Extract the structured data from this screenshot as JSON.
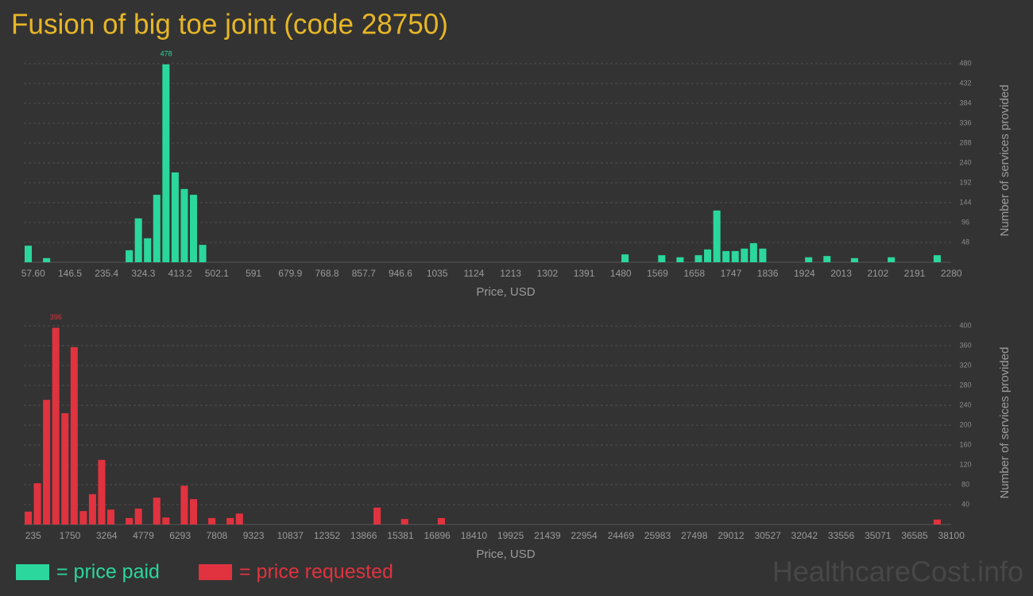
{
  "title": "Fusion of big toe joint (code 28750)",
  "watermark": "HealthcareCost.info",
  "chart_data": [
    {
      "type": "bar",
      "xlabel": "Price, USD",
      "ylabel": "Number of services provided",
      "label_max": true,
      "grid": true,
      "categories": [
        "57.60",
        null,
        null,
        null,
        "146.5",
        null,
        null,
        null,
        "235.4",
        null,
        null,
        null,
        "324.3",
        null,
        null,
        null,
        "413.2",
        null,
        null,
        null,
        "502.1",
        null,
        null,
        null,
        "591",
        null,
        null,
        null,
        "679.9",
        null,
        null,
        null,
        "768.8",
        null,
        null,
        null,
        "857.7",
        null,
        null,
        null,
        "946.6",
        null,
        null,
        null,
        "1035",
        null,
        null,
        null,
        "1124",
        null,
        null,
        null,
        "1213",
        null,
        null,
        null,
        "1302",
        null,
        null,
        null,
        "1391",
        null,
        null,
        null,
        "1480",
        null,
        null,
        null,
        "1569",
        null,
        null,
        null,
        "1658",
        null,
        null,
        null,
        "1747",
        null,
        null,
        null,
        "1836",
        null,
        null,
        null,
        "1924",
        null,
        null,
        null,
        "2013",
        null,
        null,
        null,
        "2102",
        null,
        null,
        null,
        "2191",
        null,
        null,
        null,
        "2280"
      ],
      "series": [
        {
          "name": "= price paid",
          "color": "#2bd79c",
          "values": [
            40,
            0,
            10,
            0,
            0,
            0,
            0,
            0,
            0,
            0,
            0,
            29,
            106,
            58,
            163,
            478,
            217,
            177,
            163,
            42,
            0,
            0,
            0,
            0,
            0,
            0,
            0,
            0,
            0,
            0,
            0,
            0,
            0,
            0,
            0,
            0,
            0,
            0,
            0,
            0,
            0,
            0,
            0,
            0,
            0,
            0,
            0,
            0,
            0,
            0,
            0,
            0,
            0,
            0,
            0,
            0,
            0,
            0,
            0,
            0,
            0,
            0,
            0,
            0,
            0,
            19,
            0,
            0,
            0,
            17,
            0,
            12,
            0,
            17,
            31,
            125,
            27,
            27,
            33,
            46,
            33,
            0,
            0,
            0,
            0,
            12,
            0,
            15,
            0,
            0,
            10,
            0,
            0,
            0,
            12,
            0,
            0,
            0,
            0,
            17,
            0
          ]
        }
      ],
      "ylim": [
        0,
        480
      ],
      "yticks": [
        48,
        96,
        144,
        192,
        240,
        288,
        336,
        384,
        432,
        480
      ]
    },
    {
      "type": "bar",
      "xlabel": "Price, USD",
      "ylabel": "Number of services provided",
      "label_max": true,
      "grid": true,
      "categories": [
        "235",
        null,
        null,
        null,
        "1750",
        null,
        null,
        null,
        "3264",
        null,
        null,
        null,
        "4779",
        null,
        null,
        null,
        "6293",
        null,
        null,
        null,
        "7808",
        null,
        null,
        null,
        "9323",
        null,
        null,
        null,
        "10837",
        null,
        null,
        null,
        "12352",
        null,
        null,
        null,
        "13866",
        null,
        null,
        null,
        "15381",
        null,
        null,
        null,
        "16896",
        null,
        null,
        null,
        "18410",
        null,
        null,
        null,
        "19925",
        null,
        null,
        null,
        "21439",
        null,
        null,
        null,
        "22954",
        null,
        null,
        null,
        "24469",
        null,
        null,
        null,
        "25983",
        null,
        null,
        null,
        "27498",
        null,
        null,
        null,
        "29012",
        null,
        null,
        null,
        "30527",
        null,
        null,
        null,
        "32042",
        null,
        null,
        null,
        "33556",
        null,
        null,
        null,
        "35071",
        null,
        null,
        null,
        "36585",
        null,
        null,
        null,
        "38100"
      ],
      "series": [
        {
          "name": "= price requested",
          "color": "#e0333f",
          "values": [
            26,
            83,
            251,
            396,
            224,
            357,
            27,
            61,
            130,
            30,
            0,
            13,
            32,
            0,
            54,
            14,
            0,
            78,
            51,
            0,
            13,
            0,
            13,
            22,
            0,
            0,
            0,
            0,
            0,
            0,
            0,
            0,
            0,
            0,
            0,
            0,
            0,
            0,
            34,
            0,
            0,
            11,
            0,
            0,
            0,
            13,
            0,
            0,
            0,
            0,
            0,
            0,
            0,
            0,
            0,
            0,
            0,
            0,
            0,
            0,
            0,
            0,
            0,
            0,
            0,
            0,
            0,
            0,
            0,
            0,
            0,
            0,
            0,
            0,
            0,
            0,
            0,
            0,
            0,
            0,
            0,
            0,
            0,
            0,
            0,
            0,
            0,
            0,
            0,
            0,
            0,
            0,
            0,
            0,
            0,
            0,
            0,
            0,
            0,
            10,
            0
          ]
        }
      ],
      "ylim": [
        0,
        400
      ],
      "yticks": [
        40,
        80,
        120,
        160,
        200,
        240,
        280,
        320,
        360,
        400
      ]
    }
  ]
}
